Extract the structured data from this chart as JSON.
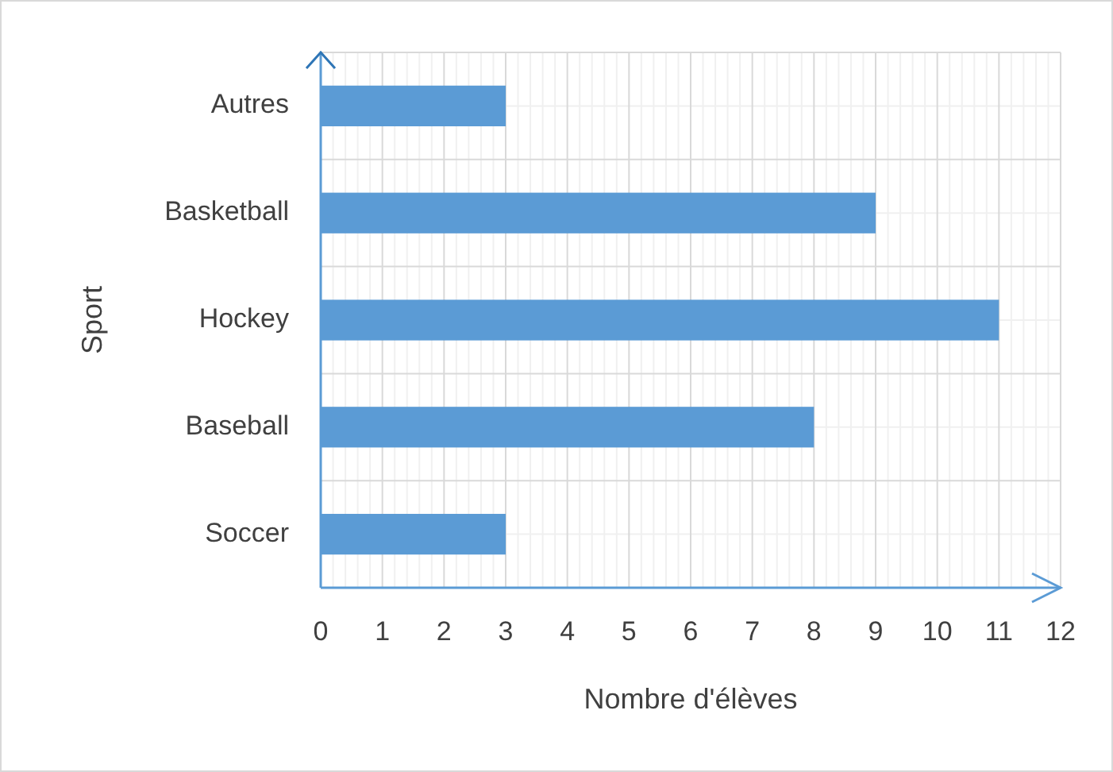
{
  "chart_data": {
    "type": "bar",
    "orientation": "horizontal",
    "xlabel": "Nombre d'élèves",
    "ylabel": "Sport",
    "categories": [
      "Autres",
      "Basketball",
      "Hockey",
      "Baseball",
      "Soccer"
    ],
    "values": [
      3,
      9,
      11,
      8,
      3
    ],
    "color": "#5b9bd5",
    "xlim": [
      0,
      12
    ],
    "xticks": [
      0,
      1,
      2,
      3,
      4,
      5,
      6,
      7,
      8,
      9,
      10,
      11,
      12
    ],
    "grid": true
  }
}
